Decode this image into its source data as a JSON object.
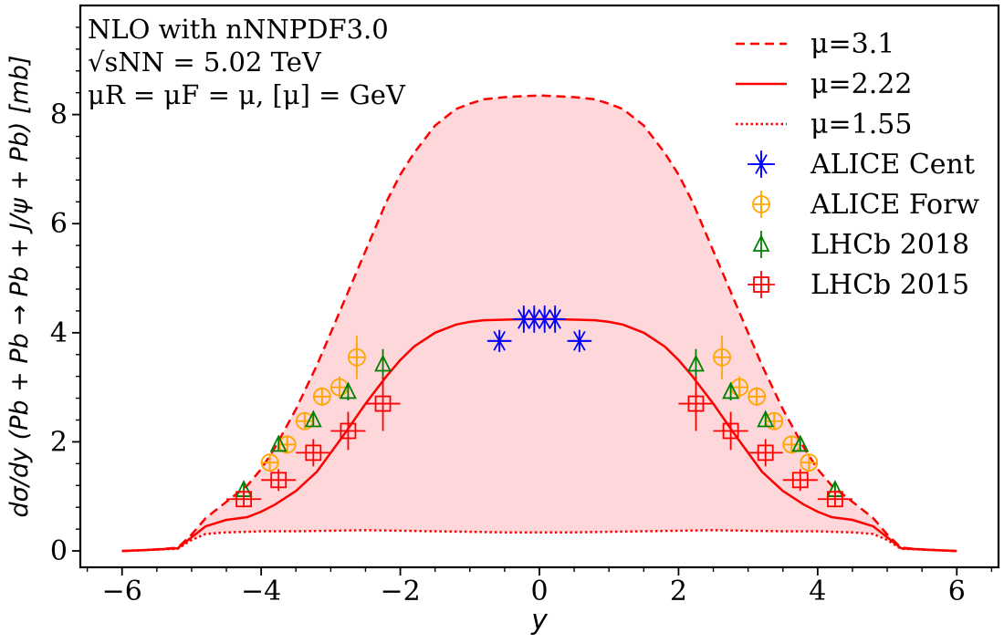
{
  "chart_data": {
    "type": "line",
    "xlabel": "y",
    "ylabel": "dσ/dy (Pb + Pb → Pb + J/ψ + Pb) [mb]",
    "xlim": [
      -6.6,
      6.6
    ],
    "ylim": [
      -0.3,
      10
    ],
    "x_ticks": [
      -6,
      -4,
      -2,
      0,
      2,
      4,
      6
    ],
    "x_tick_labels": [
      "−6",
      "−4",
      "−2",
      "0",
      "2",
      "4",
      "6"
    ],
    "y_ticks": [
      0,
      2,
      4,
      6,
      8
    ],
    "y_tick_labels": [
      "0",
      "2",
      "4",
      "6",
      "8"
    ],
    "annotations": {
      "line1": "NLO with nNNPDF3.0",
      "line2": "√sNN = 5.02 TeV",
      "line3": "μR = μF = μ, [μ] = GeV"
    },
    "fill_between": {
      "upper": "μ=3.1",
      "lower": "μ=1.55",
      "color": "#fdd7d9"
    },
    "series": [
      {
        "name": "μ=3.1",
        "style": "dashed",
        "color": "#ff0000",
        "x": [
          -6.0,
          -5.6,
          -5.2,
          -5.0,
          -4.8,
          -4.5,
          -4.2,
          -4.0,
          -3.8,
          -3.5,
          -3.2,
          -3.0,
          -2.8,
          -2.5,
          -2.2,
          -2.0,
          -1.8,
          -1.5,
          -1.2,
          -1.0,
          -0.8,
          -0.5,
          -0.2,
          0.0,
          0.2,
          0.5,
          0.8,
          1.0,
          1.2,
          1.5,
          1.8,
          2.0,
          2.2,
          2.5,
          2.8,
          3.0,
          3.2,
          3.5,
          3.8,
          4.0,
          4.2,
          4.5,
          4.8,
          5.0,
          5.2,
          5.6,
          6.0
        ],
        "y": [
          0.0,
          0.02,
          0.06,
          0.3,
          0.6,
          0.9,
          1.2,
          1.5,
          1.9,
          2.6,
          3.4,
          4.0,
          4.6,
          5.5,
          6.4,
          6.9,
          7.3,
          7.8,
          8.1,
          8.2,
          8.28,
          8.32,
          8.34,
          8.35,
          8.34,
          8.32,
          8.28,
          8.2,
          8.1,
          7.8,
          7.3,
          6.9,
          6.4,
          5.5,
          4.6,
          4.0,
          3.4,
          2.6,
          1.9,
          1.5,
          1.2,
          0.9,
          0.6,
          0.3,
          0.06,
          0.02,
          0.0
        ]
      },
      {
        "name": "μ=2.22",
        "style": "solid",
        "color": "#ff0000",
        "x": [
          -6.0,
          -5.6,
          -5.2,
          -5.0,
          -4.8,
          -4.5,
          -4.2,
          -4.0,
          -3.8,
          -3.5,
          -3.2,
          -3.0,
          -2.8,
          -2.5,
          -2.2,
          -2.0,
          -1.8,
          -1.5,
          -1.2,
          -1.0,
          -0.8,
          -0.5,
          -0.2,
          0.0,
          0.2,
          0.5,
          0.8,
          1.0,
          1.2,
          1.5,
          1.8,
          2.0,
          2.2,
          2.5,
          2.8,
          3.0,
          3.2,
          3.5,
          3.8,
          4.0,
          4.2,
          4.5,
          4.8,
          5.0,
          5.2,
          5.6,
          6.0
        ],
        "y": [
          0.0,
          0.02,
          0.05,
          0.25,
          0.45,
          0.57,
          0.62,
          0.72,
          0.85,
          1.1,
          1.45,
          1.8,
          2.15,
          2.7,
          3.2,
          3.5,
          3.75,
          4.0,
          4.15,
          4.2,
          4.23,
          4.24,
          4.25,
          4.25,
          4.25,
          4.24,
          4.23,
          4.2,
          4.15,
          4.0,
          3.75,
          3.5,
          3.2,
          2.7,
          2.15,
          1.8,
          1.45,
          1.1,
          0.85,
          0.72,
          0.62,
          0.57,
          0.45,
          0.25,
          0.05,
          0.02,
          0.0
        ]
      },
      {
        "name": "μ=1.55",
        "style": "dotted",
        "color": "#ff0000",
        "x": [
          -6.0,
          -5.6,
          -5.2,
          -5.0,
          -4.8,
          -4.5,
          -4.2,
          -4.0,
          -3.5,
          -3.0,
          -2.5,
          -2.0,
          -1.5,
          -1.0,
          -0.5,
          0.0,
          0.5,
          1.0,
          1.5,
          2.0,
          2.5,
          3.0,
          3.5,
          4.0,
          4.2,
          4.5,
          4.8,
          5.0,
          5.2,
          5.6,
          6.0
        ],
        "y": [
          0.0,
          0.02,
          0.04,
          0.2,
          0.31,
          0.34,
          0.35,
          0.36,
          0.36,
          0.37,
          0.38,
          0.37,
          0.36,
          0.35,
          0.34,
          0.34,
          0.34,
          0.35,
          0.36,
          0.37,
          0.38,
          0.37,
          0.36,
          0.36,
          0.35,
          0.34,
          0.31,
          0.2,
          0.04,
          0.02,
          0.0
        ]
      }
    ],
    "data_series": [
      {
        "name": "ALICE Cent",
        "marker": "asterisk",
        "color": "#0000ff",
        "points": [
          {
            "x": -0.575,
            "y": 3.85,
            "xerr": 0.175,
            "yerr": 0.2
          },
          {
            "x": -0.225,
            "y": 4.25,
            "xerr": 0.125,
            "yerr": 0.25
          },
          {
            "x": -0.075,
            "y": 4.25,
            "xerr": 0.075,
            "yerr": 0.25
          },
          {
            "x": 0.075,
            "y": 4.25,
            "xerr": 0.075,
            "yerr": 0.25
          },
          {
            "x": 0.225,
            "y": 4.25,
            "xerr": 0.125,
            "yerr": 0.25
          },
          {
            "x": 0.575,
            "y": 3.85,
            "xerr": 0.175,
            "yerr": 0.2
          }
        ]
      },
      {
        "name": "ALICE Forw",
        "marker": "circle-plus",
        "color": "#ffa500",
        "points": [
          {
            "x": -3.875,
            "y": 1.62,
            "yerr": 0.12
          },
          {
            "x": -3.625,
            "y": 1.95,
            "yerr": 0.12
          },
          {
            "x": -3.375,
            "y": 2.38,
            "yerr": 0.14
          },
          {
            "x": -3.125,
            "y": 2.83,
            "yerr": 0.17
          },
          {
            "x": -2.875,
            "y": 3.0,
            "yerr": 0.2
          },
          {
            "x": -2.625,
            "y": 3.55,
            "yerr": 0.4
          },
          {
            "x": 2.625,
            "y": 3.55,
            "yerr": 0.4
          },
          {
            "x": 2.875,
            "y": 3.0,
            "yerr": 0.2
          },
          {
            "x": 3.125,
            "y": 2.83,
            "yerr": 0.17
          },
          {
            "x": 3.375,
            "y": 2.38,
            "yerr": 0.14
          },
          {
            "x": 3.625,
            "y": 1.95,
            "yerr": 0.12
          },
          {
            "x": 3.875,
            "y": 1.62,
            "yerr": 0.12
          }
        ]
      },
      {
        "name": "LHCb 2018",
        "marker": "triangle",
        "color": "#008000",
        "points": [
          {
            "x": -4.25,
            "y": 1.12,
            "yerr": 0.12
          },
          {
            "x": -3.75,
            "y": 1.95,
            "yerr": 0.1
          },
          {
            "x": -3.25,
            "y": 2.4,
            "yerr": 0.12
          },
          {
            "x": -2.75,
            "y": 2.92,
            "yerr": 0.16
          },
          {
            "x": -2.25,
            "y": 3.42,
            "yerr": 0.28
          },
          {
            "x": 2.25,
            "y": 3.42,
            "yerr": 0.28
          },
          {
            "x": 2.75,
            "y": 2.92,
            "yerr": 0.16
          },
          {
            "x": 3.25,
            "y": 2.4,
            "yerr": 0.12
          },
          {
            "x": 3.75,
            "y": 1.95,
            "yerr": 0.1
          },
          {
            "x": 4.25,
            "y": 1.12,
            "yerr": 0.12
          }
        ]
      },
      {
        "name": "LHCb 2015",
        "marker": "square-plus",
        "color": "#ff0000",
        "points": [
          {
            "x": -4.25,
            "y": 0.95,
            "xerr": 0.25,
            "yerr": 0.15
          },
          {
            "x": -3.75,
            "y": 1.3,
            "xerr": 0.25,
            "yerr": 0.2
          },
          {
            "x": -3.25,
            "y": 1.8,
            "xerr": 0.25,
            "yerr": 0.25
          },
          {
            "x": -2.75,
            "y": 2.2,
            "xerr": 0.25,
            "yerr": 0.35
          },
          {
            "x": -2.25,
            "y": 2.7,
            "xerr": 0.25,
            "yerr": 0.5
          },
          {
            "x": 2.25,
            "y": 2.7,
            "xerr": 0.25,
            "yerr": 0.5
          },
          {
            "x": 2.75,
            "y": 2.2,
            "xerr": 0.25,
            "yerr": 0.35
          },
          {
            "x": 3.25,
            "y": 1.8,
            "xerr": 0.25,
            "yerr": 0.25
          },
          {
            "x": 3.75,
            "y": 1.3,
            "xerr": 0.25,
            "yerr": 0.2
          },
          {
            "x": 4.25,
            "y": 0.95,
            "xerr": 0.25,
            "yerr": 0.15
          }
        ]
      }
    ],
    "legend": {
      "position": "top-right",
      "entries": [
        "μ=3.1",
        "μ=2.22",
        "μ=1.55",
        "ALICE Cent",
        "ALICE Forw",
        "LHCb 2018",
        "LHCb 2015"
      ]
    }
  }
}
